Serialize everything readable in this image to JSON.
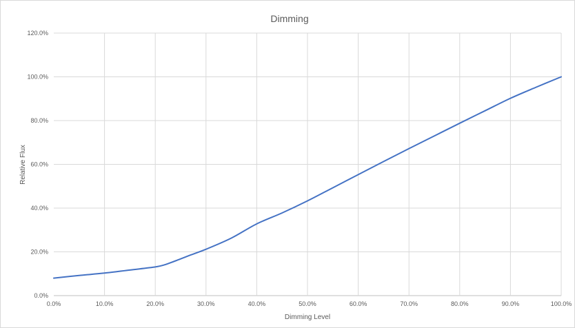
{
  "chart_data": {
    "type": "line",
    "title": "Dimming",
    "xlabel": "Dimming Level",
    "ylabel": "Relative Flux",
    "xlim": [
      0,
      100
    ],
    "ylim": [
      0,
      120
    ],
    "x_ticks": [
      "0.0%",
      "10.0%",
      "20.0%",
      "30.0%",
      "40.0%",
      "50.0%",
      "60.0%",
      "70.0%",
      "80.0%",
      "90.0%",
      "100.0%"
    ],
    "y_ticks": [
      "0.0%",
      "20.0%",
      "40.0%",
      "60.0%",
      "80.0%",
      "100.0%",
      "120.0%"
    ],
    "grid": true,
    "legend": "none",
    "series": [
      {
        "color": "#4472c4",
        "x": [
          0,
          5,
          10,
          15,
          20,
          22,
          25,
          27,
          30,
          35,
          40,
          45,
          50,
          55,
          60,
          65,
          70,
          75,
          80,
          85,
          90,
          95,
          100
        ],
        "y": [
          8,
          9.2,
          10.3,
          11.7,
          13.1,
          14.2,
          16.8,
          18.6,
          21.2,
          26.3,
          32.8,
          37.8,
          43.3,
          49.3,
          55.3,
          61.3,
          67.2,
          73.0,
          78.8,
          84.5,
          90.2,
          95.2,
          100
        ]
      }
    ]
  }
}
